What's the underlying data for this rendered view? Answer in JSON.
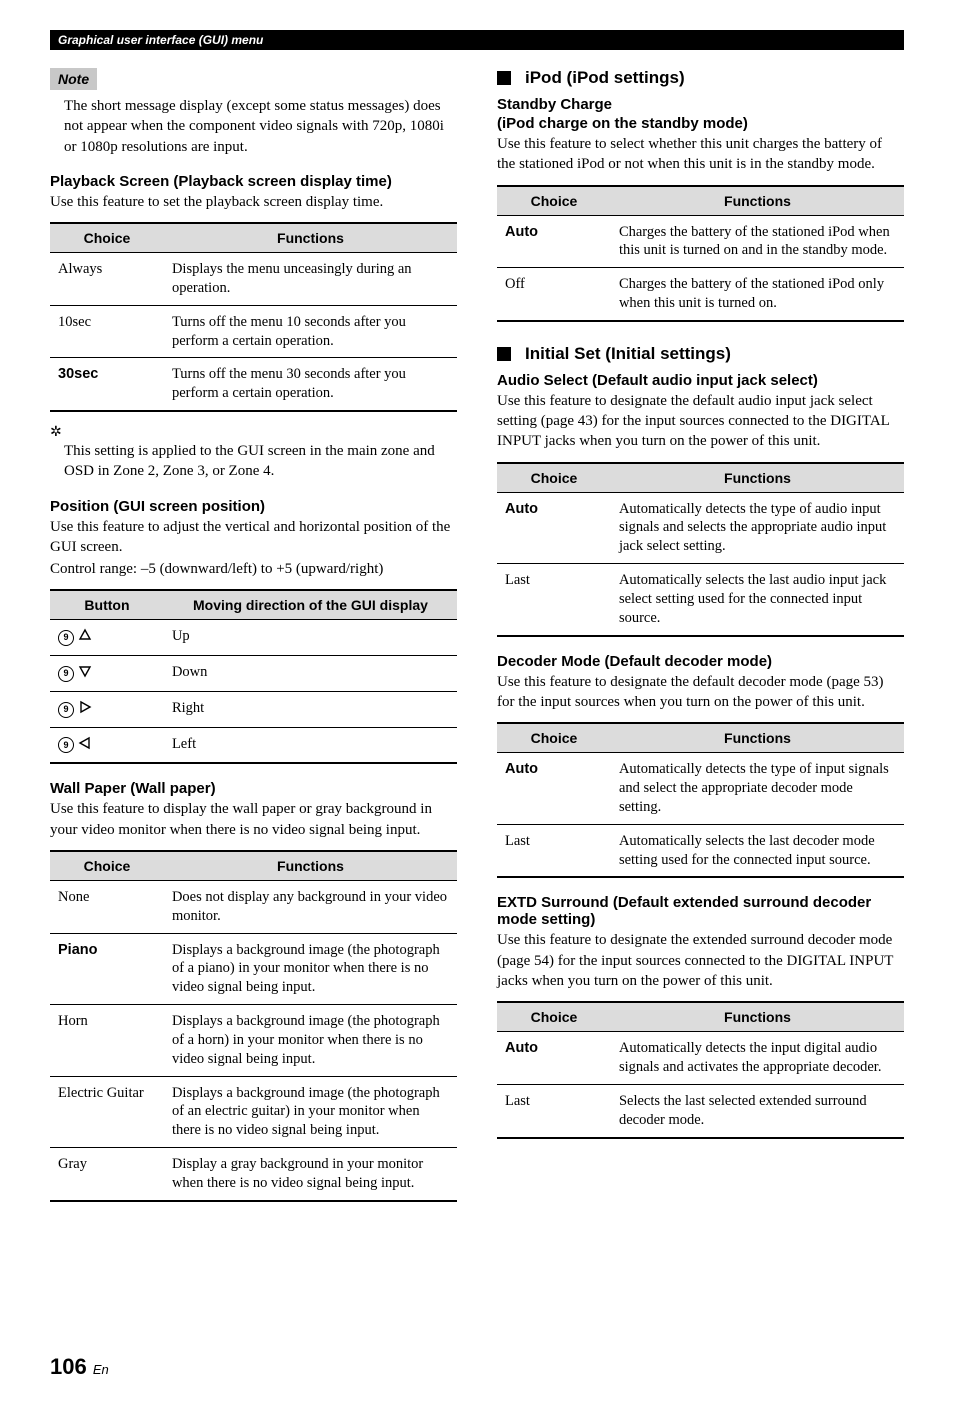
{
  "header": "Graphical user interface (GUI) menu",
  "left": {
    "note_label": "Note",
    "note_text": "The short message display (except some status messages) does not appear when the component video signals with 720p, 1080i or 1080p resolutions are input.",
    "playback": {
      "heading": "Playback Screen (Playback screen display time)",
      "desc": "Use this feature to set the playback screen display time.",
      "thead": [
        "Choice",
        "Functions"
      ],
      "rows": [
        {
          "c": "Always",
          "bold": false,
          "f": "Displays the menu unceasingly during an operation."
        },
        {
          "c": "10sec",
          "bold": false,
          "f": "Turns off the menu 10 seconds after you perform a certain operation."
        },
        {
          "c": "30sec",
          "bold": true,
          "f": "Turns off the menu 30 seconds after you perform a certain operation."
        }
      ]
    },
    "tip_icon": "✲",
    "tip_text": "This setting is applied to the GUI screen in the main zone and OSD in Zone 2, Zone 3, or Zone 4.",
    "position": {
      "heading": "Position (GUI screen position)",
      "desc1": "Use this feature to adjust the vertical and horizontal position of the GUI screen.",
      "desc2": "Control range: –5 (downward/left) to +5 (upward/right)",
      "thead": [
        "Button",
        "Moving direction of the GUI display"
      ],
      "rows": [
        {
          "dir": "up",
          "label": "Up"
        },
        {
          "dir": "down",
          "label": "Down"
        },
        {
          "dir": "right",
          "label": "Right"
        },
        {
          "dir": "left",
          "label": "Left"
        }
      ],
      "btn_num": "9"
    },
    "wallpaper": {
      "heading": "Wall Paper (Wall paper)",
      "desc": "Use this feature to display the wall paper or gray background in your video monitor when there is no video signal being input.",
      "thead": [
        "Choice",
        "Functions"
      ],
      "rows": [
        {
          "c": "None",
          "bold": false,
          "f": "Does not display any background in your video monitor."
        },
        {
          "c": "Piano",
          "bold": true,
          "f": "Displays a background image (the photograph of a piano) in your monitor when there is no video signal being input."
        },
        {
          "c": "Horn",
          "bold": false,
          "f": "Displays a background image (the photograph of a horn) in your monitor when there is no video signal being input."
        },
        {
          "c": "Electric Guitar",
          "bold": false,
          "f": "Displays a background image (the photograph of an electric guitar) in your monitor when there is no video signal being input."
        },
        {
          "c": "Gray",
          "bold": false,
          "f": "Display a gray background in your monitor when there is no video signal being input."
        }
      ]
    }
  },
  "right": {
    "ipod": {
      "heading": "iPod (iPod settings)",
      "sub1": "Standby Charge",
      "sub2": "(iPod charge on the standby mode)",
      "desc": "Use this feature to select whether this unit charges the battery of the stationed iPod or not when this unit is in the standby mode.",
      "thead": [
        "Choice",
        "Functions"
      ],
      "rows": [
        {
          "c": "Auto",
          "bold": true,
          "f": "Charges the battery of the stationed iPod when this unit is turned on and in the standby mode."
        },
        {
          "c": "Off",
          "bold": false,
          "f": "Charges the battery of the stationed iPod only when this unit is turned on."
        }
      ]
    },
    "initial": {
      "heading": "Initial Set (Initial settings)"
    },
    "audio_select": {
      "heading": "Audio Select (Default audio input jack select)",
      "desc": "Use this feature to designate the default audio input jack select setting (page 43) for the input sources connected to the DIGITAL INPUT jacks when you turn on the power of this unit.",
      "thead": [
        "Choice",
        "Functions"
      ],
      "rows": [
        {
          "c": "Auto",
          "bold": true,
          "f": "Automatically detects the type of audio input signals and selects the appropriate audio input jack select setting."
        },
        {
          "c": "Last",
          "bold": false,
          "f": "Automatically selects the last audio input jack select setting used for the connected input source."
        }
      ]
    },
    "decoder_mode": {
      "heading": "Decoder Mode (Default decoder mode)",
      "desc": "Use this feature to designate the default decoder mode (page 53) for the input sources when you turn on the power of this unit.",
      "thead": [
        "Choice",
        "Functions"
      ],
      "rows": [
        {
          "c": "Auto",
          "bold": true,
          "f": "Automatically detects the type of input signals and select the appropriate decoder mode setting."
        },
        {
          "c": "Last",
          "bold": false,
          "f": "Automatically selects the last decoder mode setting used for the connected input source."
        }
      ]
    },
    "extd": {
      "heading": "EXTD Surround (Default extended surround decoder mode setting)",
      "desc": "Use this feature to designate the extended surround decoder mode (page 54) for the input sources connected to the DIGITAL INPUT jacks when you turn on the power of this unit.",
      "thead": [
        "Choice",
        "Functions"
      ],
      "rows": [
        {
          "c": "Auto",
          "bold": true,
          "f": "Automatically detects the input digital audio signals and activates the appropriate decoder."
        },
        {
          "c": "Last",
          "bold": false,
          "f": "Selects the last selected extended surround decoder mode."
        }
      ]
    }
  },
  "page": {
    "num": "106",
    "suffix": "En"
  }
}
